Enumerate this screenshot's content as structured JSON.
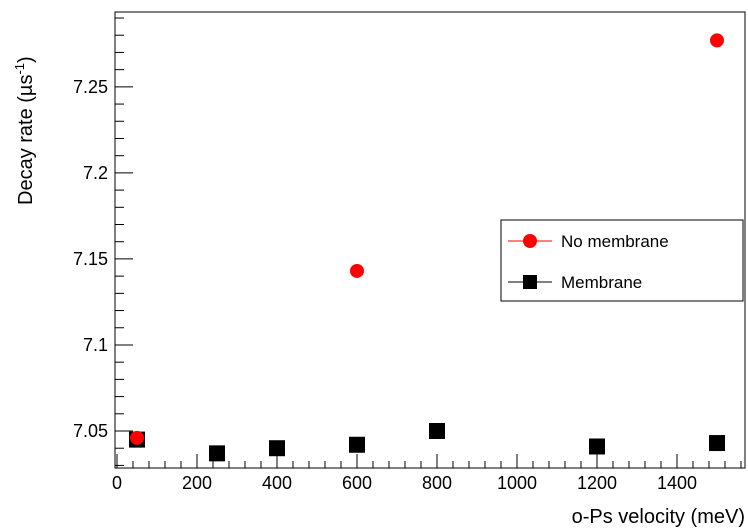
{
  "chart_data": {
    "type": "scatter",
    "xlabel": "o-Ps velocity (meV)",
    "ylabel_main": "Decay rate (µs",
    "ylabel_sup": "-1",
    "ylabel_close": ")",
    "xlim": [
      -5,
      1570
    ],
    "ylim": [
      7.0285,
      7.2935
    ],
    "x_ticks": [
      0,
      200,
      400,
      600,
      800,
      1000,
      1200,
      1400
    ],
    "x_tick_labels": [
      "0",
      "200",
      "400",
      "600",
      "800",
      "1000",
      "1200",
      "1400"
    ],
    "y_ticks": [
      7.05,
      7.1,
      7.15,
      7.2,
      7.25
    ],
    "y_tick_labels": [
      "7.05",
      "7.1",
      "7.15",
      "7.2",
      "7.25"
    ],
    "series": [
      {
        "name": "No membrane",
        "marker": "circle",
        "color": "#ff0000",
        "points": [
          {
            "x": 50,
            "y": 7.046
          },
          {
            "x": 600,
            "y": 7.143
          },
          {
            "x": 1500,
            "y": 7.277
          }
        ]
      },
      {
        "name": "Membrane",
        "marker": "square",
        "color": "#000000",
        "points": [
          {
            "x": 50,
            "y": 7.045
          },
          {
            "x": 250,
            "y": 7.037
          },
          {
            "x": 400,
            "y": 7.04
          },
          {
            "x": 600,
            "y": 7.042
          },
          {
            "x": 800,
            "y": 7.05
          },
          {
            "x": 1200,
            "y": 7.041
          },
          {
            "x": 1500,
            "y": 7.043
          }
        ]
      }
    ],
    "legend": {
      "position": "center-right"
    }
  }
}
